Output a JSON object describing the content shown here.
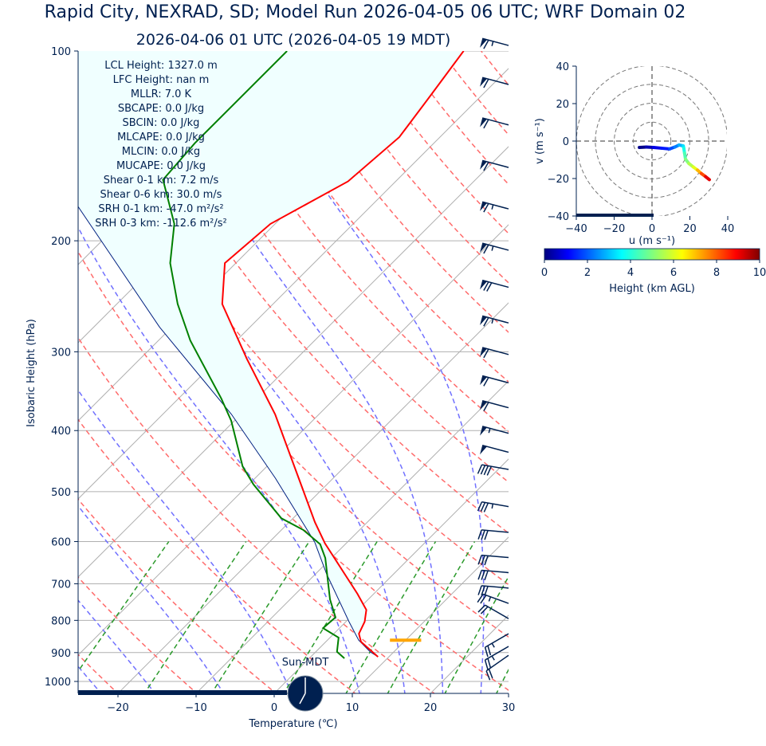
{
  "title": "Rapid City, NEXRAD, SD; Model Run 2026-04-05 06 UTC; WRF Domain 02",
  "subtitle": "2026-04-06 01 UTC  (2026-04-05 19 MDT)",
  "stats": [
    "LCL Height: 1327.0 m",
    "LFC Height: nan m",
    "MLLR: 7.0 K",
    "SBCAPE: 0.0 J/kg",
    "SBCIN: 0.0 J/kg",
    "MLCAPE: 0.0 J/kg",
    "MLCIN: 0.0 J/kg",
    "MUCAPE: 0.0 J/kg",
    "Shear 0-1 km: 7.2 m/s",
    "Shear 0-6 km: 30.0 m/s",
    "SRH 0-1 km: -47.0 m²/s²",
    "SRH 0-3 km: -112.6 m²/s²"
  ],
  "clock_label": "Sun-MDT",
  "colors": {
    "temperature": "#ff0000",
    "dewpoint": "#008000",
    "parcel": "#002080",
    "dry_adiabat": "#ff6b6b",
    "moist_adiabat": "#7070ff",
    "mixing_ratio": "#2a9a2a",
    "shade": "#f0ffff",
    "lcl": "#ffa500",
    "navy": "#002050"
  },
  "chart_data": [
    {
      "type": "line",
      "name": "skew-t",
      "xlabel": "Temperature (℃)",
      "ylabel": "Isobaric Height (hPa)",
      "xlim": [
        -25,
        30
      ],
      "ylim": [
        1050,
        100
      ],
      "xticks": [
        -20,
        -10,
        0,
        10,
        20,
        30
      ],
      "yticks": [
        100,
        200,
        300,
        400,
        500,
        600,
        700,
        800,
        900,
        1000
      ],
      "series": [
        {
          "name": "temperature",
          "p": [
            914,
            865,
            840,
            804,
            770,
            726,
            604,
            559,
            377,
            308,
            252,
            217,
            188,
            161,
            137,
            118,
            100
          ],
          "T": [
            8.6,
            4.5,
            3.2,
            2.4,
            1.1,
            -2.1,
            -12.7,
            -16.7,
            -35.6,
            -46.3,
            -56.5,
            -61.4,
            -60.6,
            -56.1,
            -55.2,
            -56.5,
            -58.0
          ]
        },
        {
          "name": "dewpoint",
          "p": [
            919,
            897,
            852,
            823,
            791,
            741,
            637,
            606,
            575,
            551,
            487,
            456,
            386,
            356,
            288,
            252,
            217,
            188,
            160,
            140,
            100
          ],
          "T": [
            4.5,
            2.7,
            1.1,
            -2.1,
            -1.9,
            -4.9,
            -10.8,
            -13.2,
            -17.2,
            -21.5,
            -29.4,
            -33.1,
            -40.4,
            -44.5,
            -55.9,
            -62.2,
            -68.4,
            -72.9,
            -80.0,
            -80.6,
            -80.6
          ]
        },
        {
          "name": "parcel",
          "p": [
            914,
            898,
            860,
            804,
            675,
            601,
            476,
            377,
            274,
            176,
            100
          ],
          "T": [
            8.6,
            7.0,
            4.0,
            0.4,
            -8.6,
            -14.2,
            -27.4,
            -41.2,
            -61.6,
            -87.6,
            -130
          ]
        }
      ],
      "lcl_pressure": 860,
      "lcl_T_range": [
        8,
        12
      ],
      "dry_adiabats_K": [
        240,
        250,
        260,
        270,
        280,
        290,
        300,
        310,
        320,
        330,
        340,
        350,
        360,
        370,
        380,
        390,
        400,
        410,
        420,
        430,
        440,
        450,
        460
      ],
      "moist_adiabats_C": [
        -25,
        -18,
        -9,
        0,
        9,
        15,
        20,
        25
      ],
      "mixing_ratios_gkg": [
        0.4,
        1,
        2,
        4,
        7,
        10,
        16,
        24
      ],
      "wind_barbs": [
        {
          "p": 98,
          "speed": 65,
          "dir": 285
        },
        {
          "p": 113,
          "speed": 60,
          "dir": 285
        },
        {
          "p": 131,
          "speed": 60,
          "dir": 285
        },
        {
          "p": 153,
          "speed": 60,
          "dir": 285
        },
        {
          "p": 178,
          "speed": 65,
          "dir": 285
        },
        {
          "p": 207,
          "speed": 65,
          "dir": 285
        },
        {
          "p": 237,
          "speed": 70,
          "dir": 285
        },
        {
          "p": 270,
          "speed": 65,
          "dir": 285
        },
        {
          "p": 303,
          "speed": 60,
          "dir": 285
        },
        {
          "p": 336,
          "speed": 60,
          "dir": 285
        },
        {
          "p": 368,
          "speed": 60,
          "dir": 285
        },
        {
          "p": 404,
          "speed": 55,
          "dir": 285
        },
        {
          "p": 433,
          "speed": 50,
          "dir": 285
        },
        {
          "p": 461,
          "speed": 40,
          "dir": 280
        },
        {
          "p": 528,
          "speed": 35,
          "dir": 280
        },
        {
          "p": 580,
          "speed": 30,
          "dir": 275
        },
        {
          "p": 636,
          "speed": 30,
          "dir": 275
        },
        {
          "p": 672,
          "speed": 30,
          "dir": 275
        },
        {
          "p": 711,
          "speed": 30,
          "dir": 275
        },
        {
          "p": 752,
          "speed": 25,
          "dir": 290
        },
        {
          "p": 795,
          "speed": 20,
          "dir": 300
        },
        {
          "p": 840,
          "speed": 25,
          "dir": 240
        },
        {
          "p": 880,
          "speed": 25,
          "dir": 240
        },
        {
          "p": 909,
          "speed": 20,
          "dir": 235
        }
      ]
    },
    {
      "type": "line",
      "name": "hodograph",
      "xlabel": "u (m s⁻¹)",
      "ylabel": "v (m s⁻¹)",
      "xlim": [
        -40,
        40
      ],
      "ylim": [
        -40,
        40
      ],
      "xticks": [
        -40,
        -20,
        0,
        20,
        40
      ],
      "yticks": [
        -40,
        -20,
        0,
        20,
        40
      ],
      "rings": [
        10,
        20,
        30,
        40
      ],
      "u": [
        -6.7,
        -3,
        0.8,
        5,
        9.3,
        12,
        14.3,
        16.5,
        16.8,
        17.2,
        17.7,
        19.5,
        21.9,
        24,
        26,
        28.3,
        30.3
      ],
      "v": [
        -3.4,
        -3.2,
        -3.4,
        -3.8,
        -4.2,
        -3.2,
        -2.1,
        -2.6,
        -3.8,
        -6.5,
        -9.7,
        -12,
        -13.9,
        -15.5,
        -17.3,
        -19,
        -20.6
      ],
      "height_km": [
        0.1,
        0.5,
        1,
        1.5,
        2,
        2.5,
        3,
        3.5,
        4,
        4.5,
        5,
        5.5,
        6,
        7,
        8,
        9,
        10
      ]
    },
    {
      "type": "colorbar",
      "label": "Height (km AGL)",
      "range": [
        0,
        10
      ],
      "ticks": [
        0,
        2,
        4,
        6,
        8,
        10
      ]
    }
  ]
}
